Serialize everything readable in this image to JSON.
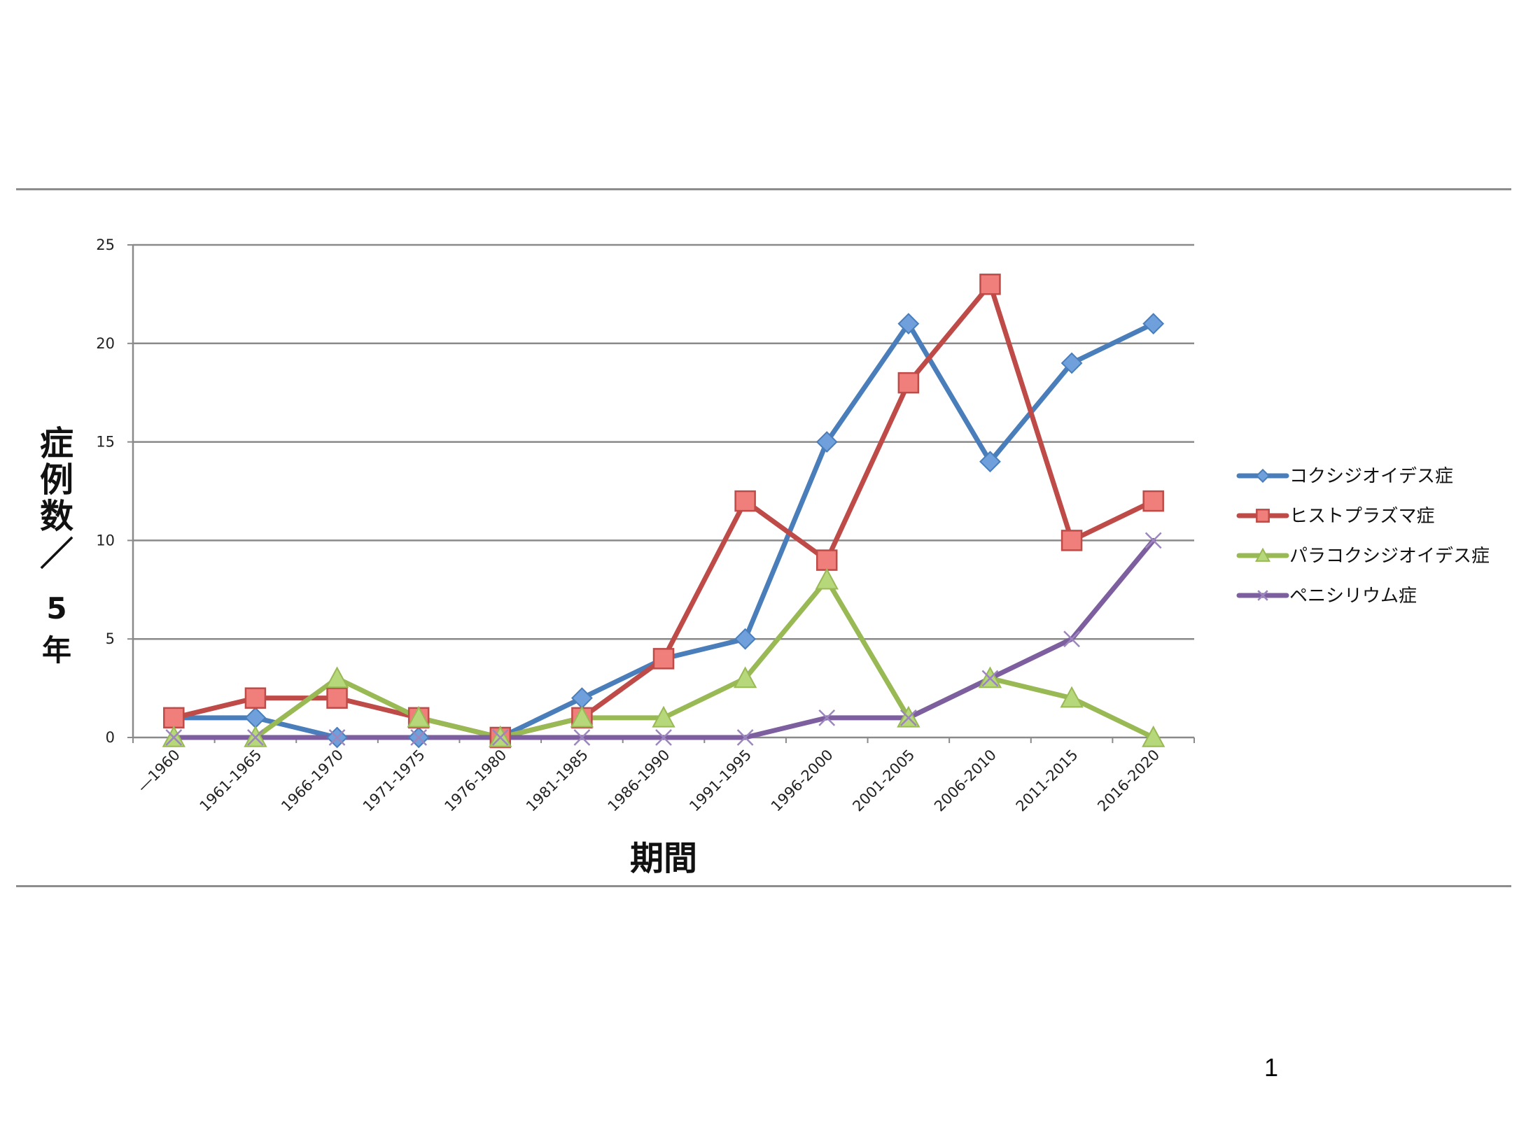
{
  "page_number": "1",
  "chart_data": {
    "type": "line",
    "title": "",
    "xlabel": "期間",
    "ylabel": [
      "症",
      "例",
      "数",
      "／",
      "5",
      "年"
    ],
    "ylim": [
      0,
      25
    ],
    "yticks": [
      0,
      5,
      10,
      15,
      20,
      25
    ],
    "grid": true,
    "legend": "right",
    "categories": [
      "―1960",
      "1961-1965",
      "1966-1970",
      "1971-1975",
      "1976-1980",
      "1981-1985",
      "1986-1990",
      "1991-1995",
      "1996-2000",
      "2001-2005",
      "2006-2010",
      "2011-2015",
      "2016-2020"
    ],
    "series": [
      {
        "name": "コクシジオイデス症",
        "color": "#4a7ebb",
        "marker": "diamond",
        "values": [
          1,
          1,
          0,
          0,
          0,
          2,
          4,
          5,
          15,
          21,
          14,
          19,
          21
        ]
      },
      {
        "name": "ヒストプラズマ症",
        "color": "#be4b48",
        "marker": "square",
        "values": [
          1,
          2,
          2,
          1,
          0,
          1,
          4,
          12,
          9,
          18,
          23,
          10,
          12
        ]
      },
      {
        "name": "パラコクシジオイデス症",
        "color": "#98b954",
        "marker": "triangle",
        "values": [
          0,
          0,
          3,
          1,
          0,
          1,
          1,
          3,
          8,
          1,
          3,
          2,
          0
        ]
      },
      {
        "name": "ペニシリウム症",
        "color": "#7d5fa0",
        "marker": "x",
        "values": [
          0,
          0,
          0,
          0,
          0,
          0,
          0,
          0,
          1,
          1,
          3,
          5,
          10
        ]
      }
    ]
  }
}
